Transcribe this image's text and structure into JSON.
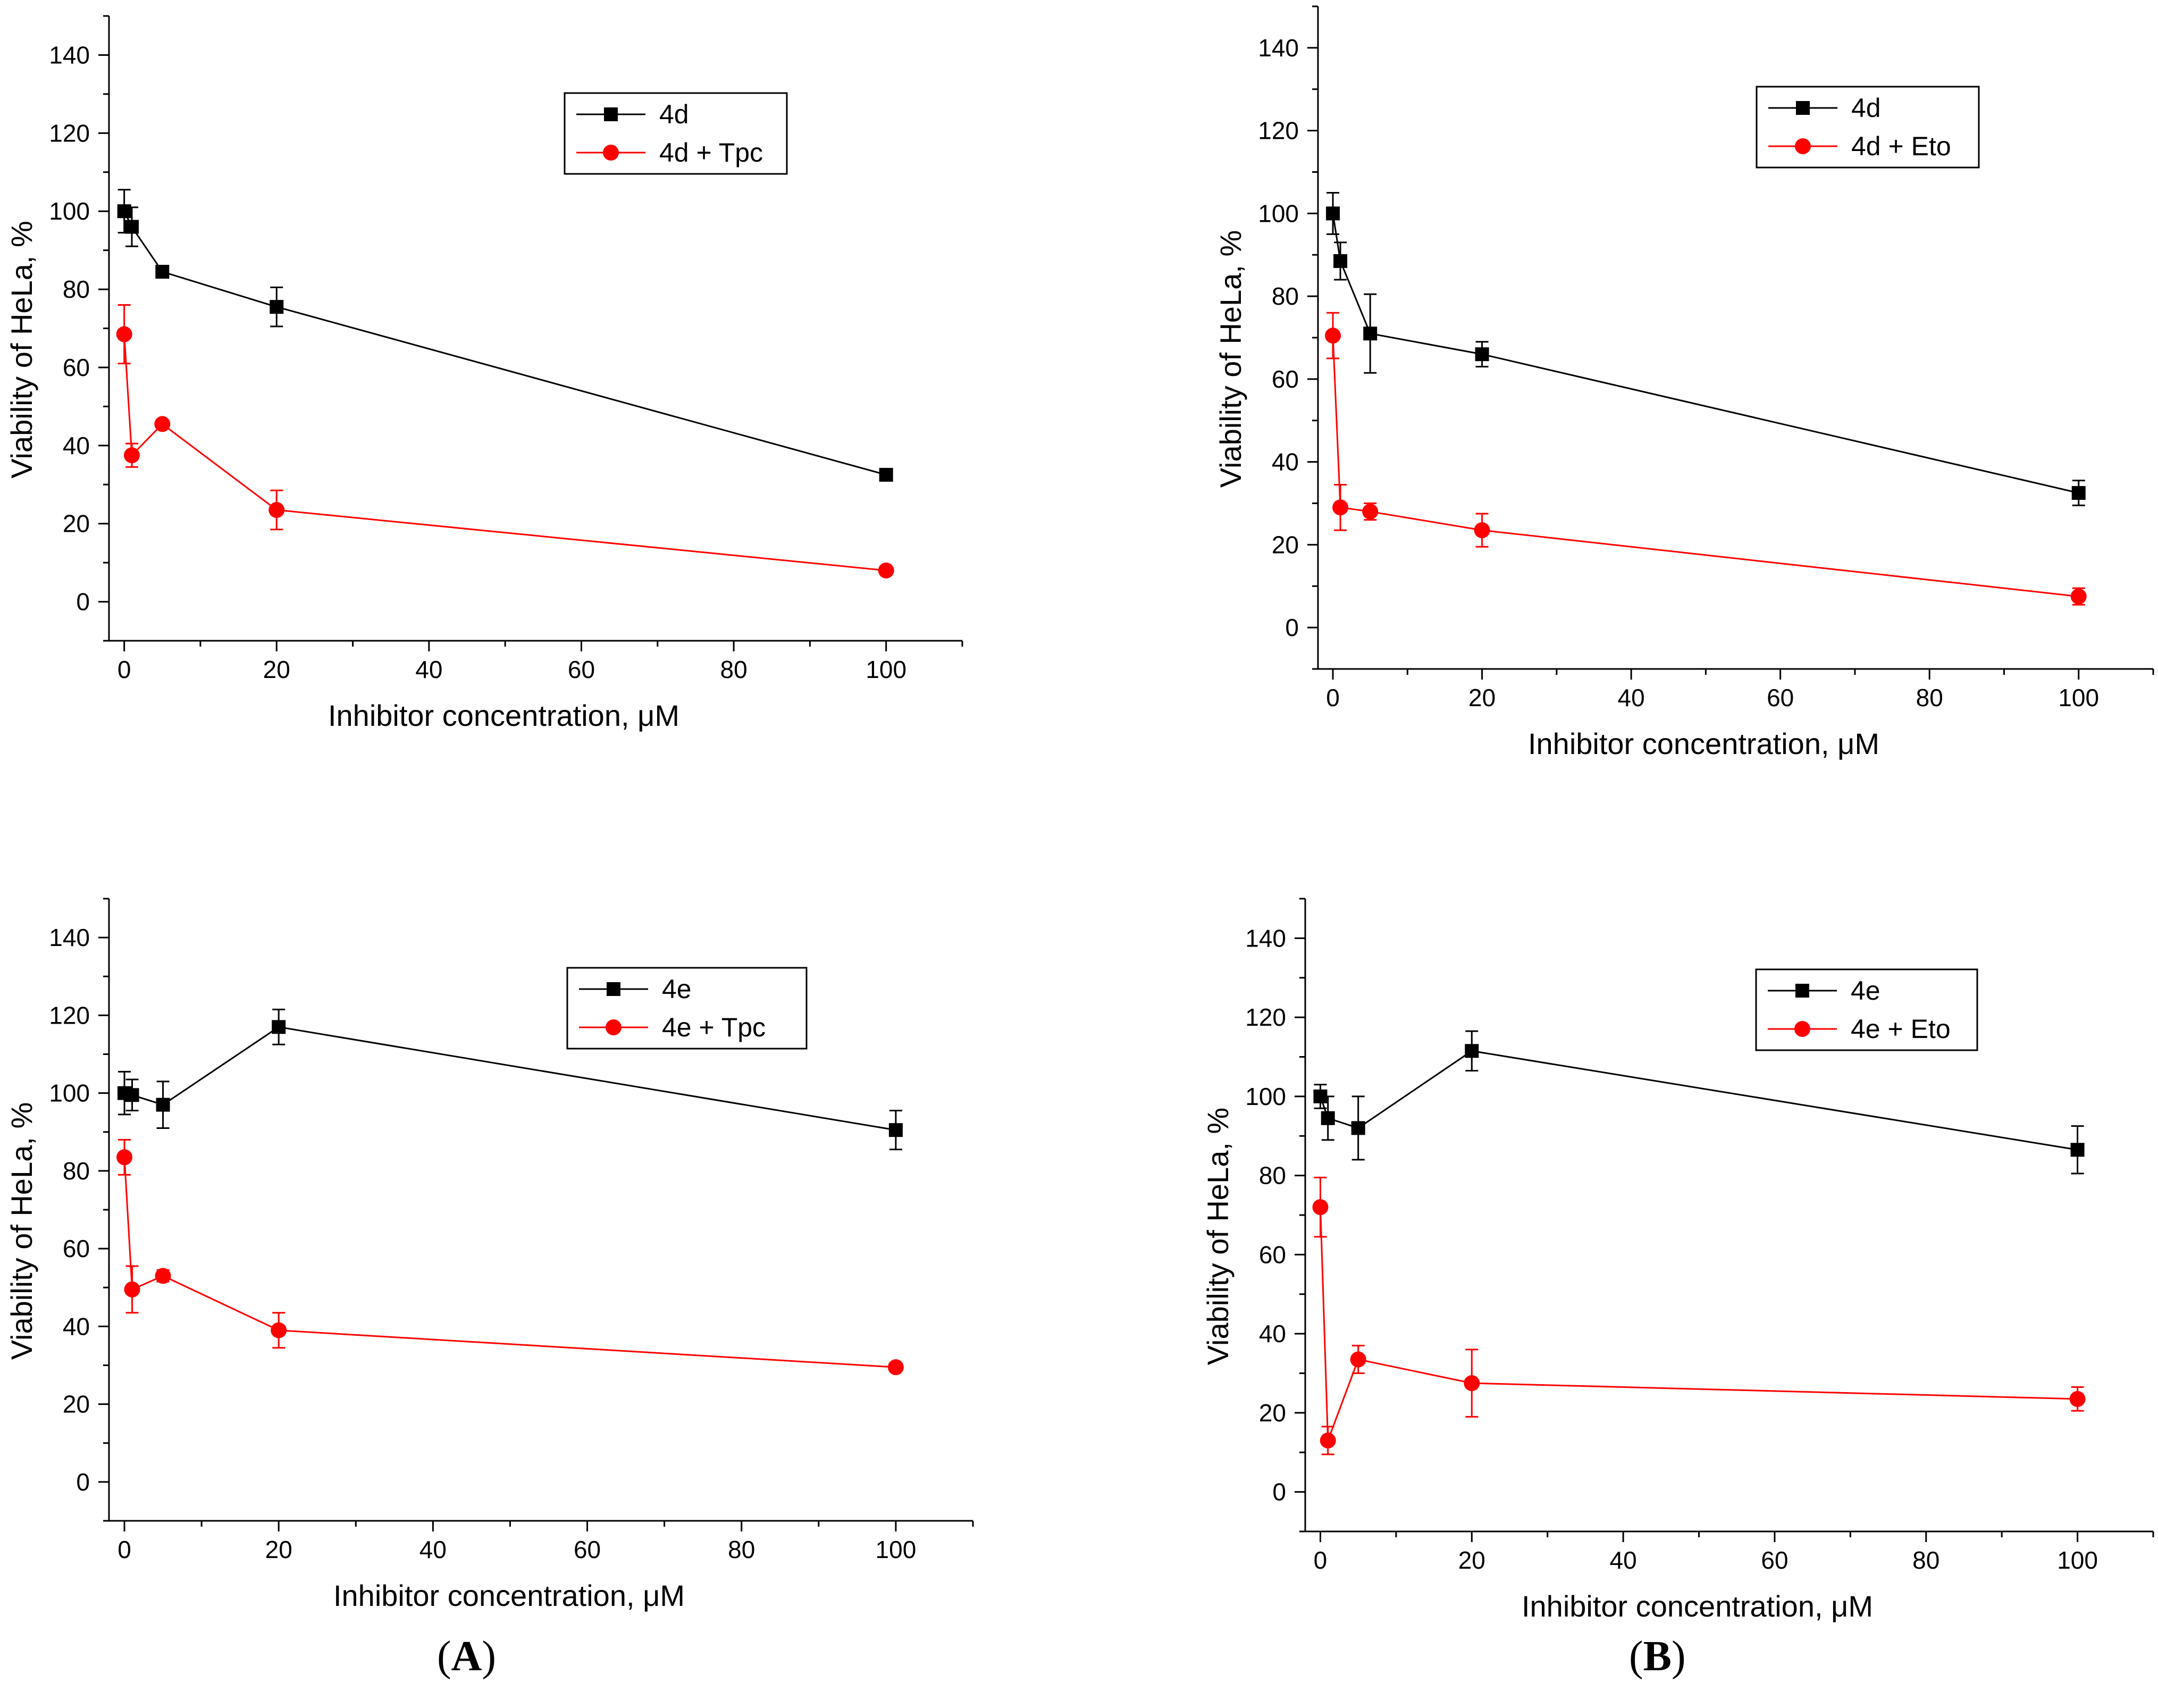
{
  "panel_labels": [
    {
      "open": "(",
      "letter": "A",
      "close": ")"
    },
    {
      "open": "(",
      "letter": "B",
      "close": ")"
    }
  ],
  "colors": {
    "series_black": "#000000",
    "series_red": "#ff0000",
    "axis": "#000000"
  },
  "chart_data": [
    {
      "type": "line",
      "xlabel": "Inhibitor concentration, μM",
      "ylabel": "Viability of HeLa, %",
      "xlim": [
        -2,
        110
      ],
      "ylim": [
        -10,
        150
      ],
      "xticks": [
        0,
        20,
        40,
        60,
        80,
        100
      ],
      "yticks": [
        0,
        20,
        40,
        60,
        80,
        100,
        120,
        140
      ],
      "legend_position": "top-right",
      "series": [
        {
          "name": "4d",
          "marker": "square",
          "color": "#000000",
          "x": [
            0,
            1,
            5,
            20,
            100
          ],
          "y": [
            100,
            96,
            84.5,
            75.5,
            32.5
          ],
          "err": [
            5.5,
            5,
            1.5,
            5,
            1.5
          ]
        },
        {
          "name": "4d + Tpc",
          "marker": "circle",
          "color": "#ff0000",
          "x": [
            0,
            1,
            5,
            20,
            100
          ],
          "y": [
            68.5,
            37.5,
            45.5,
            23.5,
            8
          ],
          "err": [
            7.5,
            3,
            1,
            5,
            1
          ]
        }
      ]
    },
    {
      "type": "line",
      "xlabel": "Inhibitor concentration, μM",
      "ylabel": "Viability of HeLa, %",
      "xlim": [
        -2,
        110
      ],
      "ylim": [
        -10,
        150
      ],
      "xticks": [
        0,
        20,
        40,
        60,
        80,
        100
      ],
      "yticks": [
        0,
        20,
        40,
        60,
        80,
        100,
        120,
        140
      ],
      "legend_position": "top-right",
      "series": [
        {
          "name": "4d",
          "marker": "square",
          "color": "#000000",
          "x": [
            0,
            1,
            5,
            20,
            100
          ],
          "y": [
            100,
            88.5,
            71,
            66,
            32.5
          ],
          "err": [
            5,
            4.5,
            9.5,
            3,
            3
          ]
        },
        {
          "name": "4d + Eto",
          "marker": "circle",
          "color": "#ff0000",
          "x": [
            0,
            1,
            5,
            20,
            100
          ],
          "y": [
            70.5,
            29,
            28,
            23.5,
            7.5
          ],
          "err": [
            5.5,
            5.5,
            2,
            4,
            2
          ]
        }
      ]
    },
    {
      "type": "line",
      "xlabel": "Inhibitor concentration, μM",
      "ylabel": "Viability of HeLa, %",
      "xlim": [
        -2,
        110
      ],
      "ylim": [
        -10,
        150
      ],
      "xticks": [
        0,
        20,
        40,
        60,
        80,
        100
      ],
      "yticks": [
        0,
        20,
        40,
        60,
        80,
        100,
        120,
        140
      ],
      "legend_position": "top-right",
      "series": [
        {
          "name": "4e",
          "marker": "square",
          "color": "#000000",
          "x": [
            0,
            1,
            5,
            20,
            100
          ],
          "y": [
            100,
            99.5,
            97,
            117,
            90.5
          ],
          "err": [
            5.5,
            4,
            6,
            4.5,
            5
          ]
        },
        {
          "name": "4e + Tpc",
          "marker": "circle",
          "color": "#ff0000",
          "x": [
            0,
            1,
            5,
            20,
            100
          ],
          "y": [
            83.5,
            49.5,
            53,
            39,
            29.5
          ],
          "err": [
            4.5,
            6,
            1.5,
            4.5,
            1
          ]
        }
      ]
    },
    {
      "type": "line",
      "xlabel": "Inhibitor concentration, μM",
      "ylabel": "Viability of HeLa, %",
      "xlim": [
        -2,
        110
      ],
      "ylim": [
        -10,
        150
      ],
      "xticks": [
        0,
        20,
        40,
        60,
        80,
        100
      ],
      "yticks": [
        0,
        20,
        40,
        60,
        80,
        100,
        120,
        140
      ],
      "legend_position": "top-right",
      "series": [
        {
          "name": "4e",
          "marker": "square",
          "color": "#000000",
          "x": [
            0,
            1,
            5,
            20,
            100
          ],
          "y": [
            100,
            94.5,
            92,
            111.5,
            86.5
          ],
          "err": [
            3,
            5.5,
            8,
            5,
            6
          ]
        },
        {
          "name": "4e + Eto",
          "marker": "circle",
          "color": "#ff0000",
          "x": [
            0,
            1,
            5,
            20,
            100
          ],
          "y": [
            72,
            13,
            33.5,
            27.5,
            23.5
          ],
          "err": [
            7.5,
            3.5,
            3.5,
            8.5,
            3
          ]
        }
      ]
    }
  ]
}
